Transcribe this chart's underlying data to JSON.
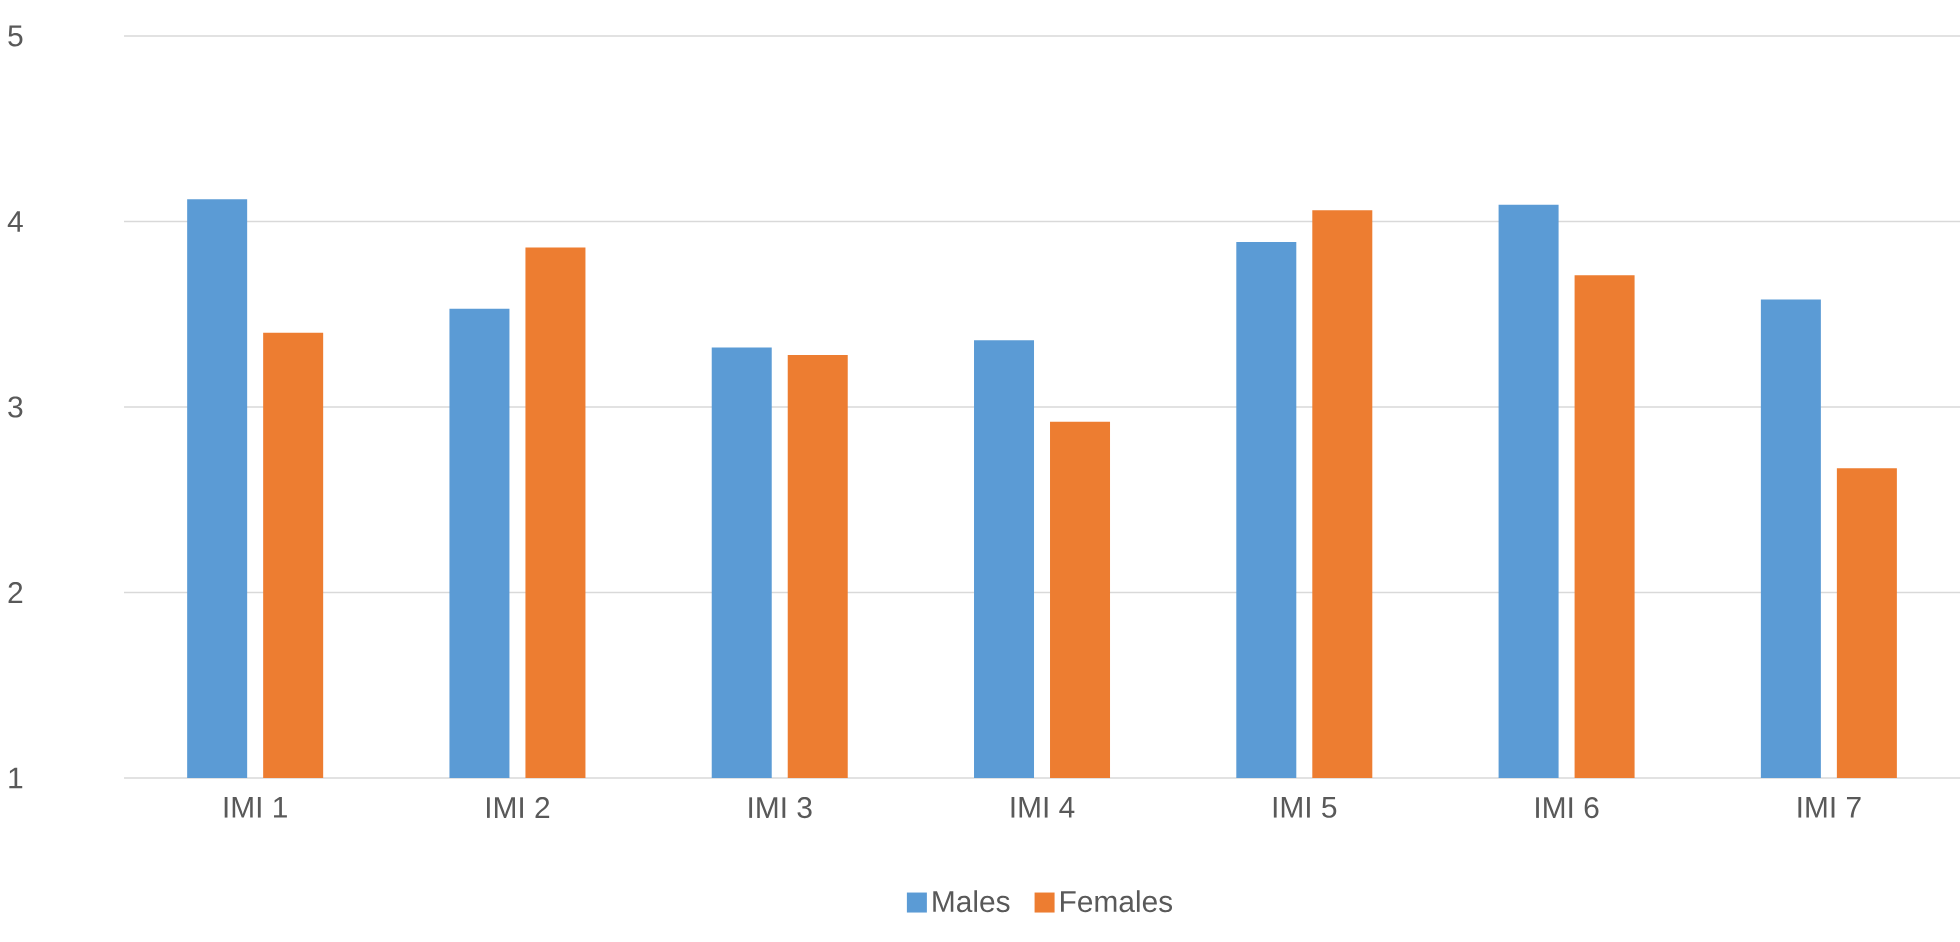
{
  "chart_data": {
    "type": "bar",
    "categories": [
      "IMI 1",
      "IMI 2",
      "IMI 3",
      "IMI 4",
      "IMI 5",
      "IMI 6",
      "IMI 7"
    ],
    "series": [
      {
        "name": "Males",
        "color": "#5b9bd5",
        "values": [
          4.12,
          3.53,
          3.32,
          3.36,
          3.89,
          4.09,
          3.58
        ]
      },
      {
        "name": "Females",
        "color": "#ed7d31",
        "values": [
          3.4,
          3.86,
          3.28,
          2.92,
          4.06,
          3.71,
          2.67
        ]
      }
    ],
    "ylim": [
      1,
      5
    ],
    "yticks": [
      1,
      2,
      3,
      4,
      5
    ],
    "grid": "y",
    "legend": "bottom"
  }
}
